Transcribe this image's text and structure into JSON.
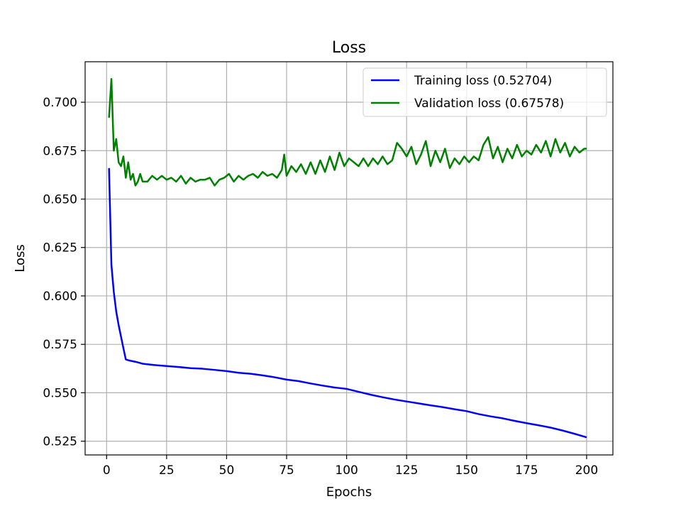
{
  "chart_data": {
    "type": "line",
    "title": "Loss",
    "xlabel": "Epochs",
    "ylabel": "Loss",
    "xlim": [
      -8.95,
      210.95
    ],
    "ylim": [
      0.5179,
      0.7209
    ],
    "xticks": [
      0,
      25,
      50,
      75,
      100,
      125,
      150,
      175,
      200
    ],
    "xtick_labels": [
      "0",
      "25",
      "50",
      "75",
      "100",
      "125",
      "150",
      "175",
      "200"
    ],
    "yticks": [
      0.525,
      0.55,
      0.575,
      0.6,
      0.625,
      0.65,
      0.675,
      0.7
    ],
    "ytick_labels": [
      "0.525",
      "0.550",
      "0.575",
      "0.600",
      "0.625",
      "0.650",
      "0.675",
      "0.700"
    ],
    "grid": true,
    "legend_position": "top-right",
    "series": [
      {
        "name": "Training loss (0.52704)",
        "color": "#0000ff",
        "x": [
          1,
          2,
          3,
          4,
          5,
          6,
          7,
          8,
          9,
          10,
          12,
          15,
          20,
          25,
          30,
          35,
          40,
          45,
          50,
          55,
          60,
          65,
          70,
          75,
          80,
          85,
          90,
          95,
          100,
          105,
          110,
          115,
          120,
          125,
          130,
          135,
          140,
          145,
          150,
          155,
          160,
          165,
          170,
          175,
          180,
          185,
          190,
          195,
          200
        ],
        "y": [
          0.666,
          0.616,
          0.602,
          0.592,
          0.585,
          0.579,
          0.573,
          0.5672,
          0.5668,
          0.5665,
          0.566,
          0.565,
          0.5643,
          0.5638,
          0.5633,
          0.5627,
          0.5624,
          0.5618,
          0.5612,
          0.5603,
          0.5598,
          0.559,
          0.558,
          0.5568,
          0.556,
          0.5548,
          0.5537,
          0.5527,
          0.552,
          0.5505,
          0.549,
          0.5477,
          0.5465,
          0.5455,
          0.5445,
          0.5435,
          0.5426,
          0.5415,
          0.5405,
          0.539,
          0.5378,
          0.5368,
          0.5355,
          0.5343,
          0.5332,
          0.532,
          0.5305,
          0.5288,
          0.527
        ]
      },
      {
        "name": "Validation loss (0.67578)",
        "color": "#008000",
        "x": [
          1,
          2,
          3,
          4,
          5,
          6,
          7,
          8,
          9,
          10,
          11,
          12,
          13,
          14,
          15,
          17,
          19,
          21,
          23,
          25,
          27,
          29,
          31,
          33,
          35,
          37,
          39,
          41,
          43,
          45,
          47,
          49,
          51,
          53,
          55,
          57,
          59,
          61,
          63,
          65,
          67,
          69,
          71,
          73,
          74,
          75,
          77,
          79,
          81,
          83,
          85,
          87,
          89,
          91,
          93,
          95,
          97,
          99,
          101,
          103,
          105,
          107,
          109,
          111,
          113,
          115,
          117,
          119,
          121,
          123,
          125,
          127,
          129,
          131,
          133,
          135,
          137,
          139,
          141,
          143,
          145,
          147,
          149,
          151,
          153,
          155,
          157,
          159,
          161,
          163,
          165,
          167,
          169,
          171,
          173,
          175,
          177,
          179,
          181,
          183,
          185,
          187,
          189,
          191,
          193,
          195,
          197,
          199,
          200
        ],
        "y": [
          0.692,
          0.712,
          0.675,
          0.681,
          0.669,
          0.667,
          0.672,
          0.661,
          0.669,
          0.66,
          0.663,
          0.657,
          0.659,
          0.663,
          0.659,
          0.659,
          0.662,
          0.66,
          0.662,
          0.66,
          0.661,
          0.659,
          0.662,
          0.658,
          0.661,
          0.659,
          0.66,
          0.66,
          0.661,
          0.657,
          0.66,
          0.661,
          0.663,
          0.659,
          0.662,
          0.66,
          0.662,
          0.663,
          0.661,
          0.664,
          0.662,
          0.663,
          0.661,
          0.665,
          0.673,
          0.662,
          0.667,
          0.664,
          0.668,
          0.663,
          0.669,
          0.663,
          0.67,
          0.664,
          0.672,
          0.665,
          0.674,
          0.667,
          0.671,
          0.669,
          0.667,
          0.671,
          0.667,
          0.671,
          0.668,
          0.672,
          0.668,
          0.67,
          0.679,
          0.676,
          0.672,
          0.677,
          0.668,
          0.673,
          0.68,
          0.667,
          0.675,
          0.669,
          0.676,
          0.666,
          0.671,
          0.668,
          0.672,
          0.669,
          0.672,
          0.67,
          0.678,
          0.682,
          0.671,
          0.677,
          0.669,
          0.676,
          0.671,
          0.678,
          0.672,
          0.675,
          0.673,
          0.678,
          0.674,
          0.68,
          0.672,
          0.681,
          0.674,
          0.679,
          0.672,
          0.677,
          0.674,
          0.676,
          0.676
        ]
      }
    ]
  }
}
